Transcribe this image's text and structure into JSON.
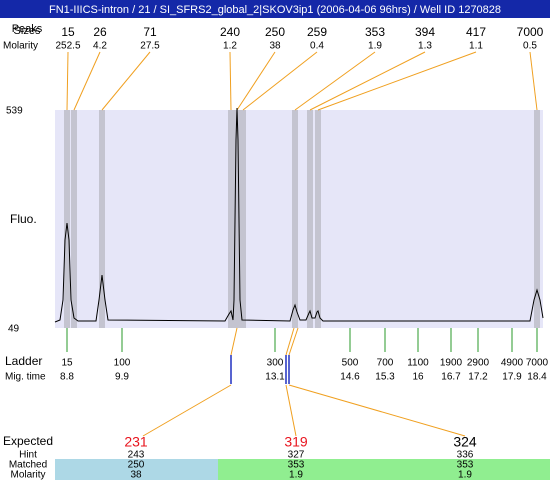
{
  "header": {
    "title": "FN1-IIICS-intron / 21 / SI_SFRS2_global_2|SKOV3ip1 (2006-04-06 96hrs) / Well ID 1270828"
  },
  "peaks": {
    "peaks_label": "Peaks",
    "sizes_label": "Sizes",
    "molarity_label": "Molarity",
    "sizes": [
      15,
      26,
      71,
      240,
      250,
      259,
      353,
      394,
      417,
      7000
    ],
    "molarity": [
      252.5,
      4.2,
      27.5,
      1.2,
      38,
      0.4,
      1.9,
      1.3,
      1.1,
      0.5
    ]
  },
  "plot": {
    "y_max": "539",
    "y_min": "49",
    "y_label": "Fluo."
  },
  "ladder": {
    "label": "Ladder",
    "time_label": "Mig. time",
    "sizes": [
      15,
      100,
      300,
      500,
      700,
      1100,
      1900,
      2900,
      4900,
      7000
    ],
    "times": [
      8.8,
      9.9,
      13.1,
      14.6,
      15.3,
      16,
      16.7,
      17.2,
      17.9,
      18.4
    ]
  },
  "expected": {
    "label": "Expected",
    "hint_label": "Hint",
    "matched_label": "Matched",
    "molarity_label": "Molarity",
    "items": [
      {
        "expected": 231,
        "color": "#e8141e",
        "hint": 243,
        "matched": 250,
        "molarity": 38
      },
      {
        "expected": 319,
        "color": "#e8141e",
        "hint": 327,
        "matched": 353,
        "molarity": 1.9
      },
      {
        "expected": 324,
        "color": "#000000",
        "hint": 336,
        "matched": 353,
        "molarity": 1.9
      }
    ]
  }
}
